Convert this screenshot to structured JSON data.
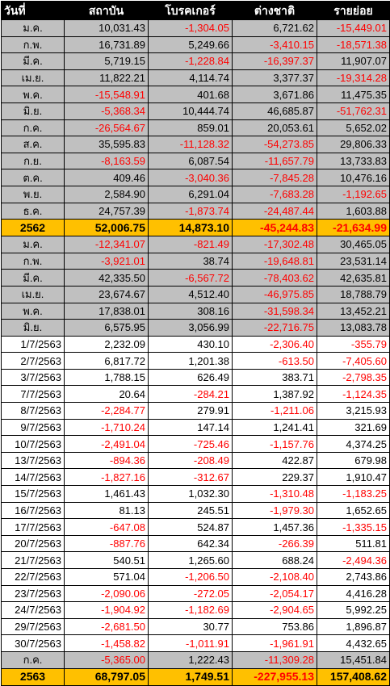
{
  "headers": [
    "วันที่",
    "สถาบัน",
    "โบรคเกอร์",
    "ต่างชาติ",
    "รายย่อย"
  ],
  "rows": [
    {
      "type": "month",
      "label": "ม.ค.",
      "values": [
        "10,031.43",
        "-1,304.05",
        "6,721.62",
        "-15,449.01"
      ]
    },
    {
      "type": "month",
      "label": "ก.พ.",
      "values": [
        "16,731.89",
        "5,249.66",
        "-3,410.15",
        "-18,571.38"
      ]
    },
    {
      "type": "month",
      "label": "มี.ค.",
      "values": [
        "5,719.15",
        "-1,228.84",
        "-16,397.37",
        "11,907.07"
      ]
    },
    {
      "type": "month",
      "label": "เม.ย.",
      "values": [
        "11,822.21",
        "4,114.74",
        "3,377.37",
        "-19,314.28"
      ]
    },
    {
      "type": "month",
      "label": "พ.ค.",
      "values": [
        "-15,548.91",
        "401.68",
        "3,671.86",
        "11,475.35"
      ]
    },
    {
      "type": "month",
      "label": "มิ.ย.",
      "values": [
        "-5,368.34",
        "10,444.74",
        "46,685.87",
        "-51,762.31"
      ]
    },
    {
      "type": "month",
      "label": "ก.ค.",
      "values": [
        "-26,564.67",
        "859.01",
        "20,053.61",
        "5,652.02"
      ]
    },
    {
      "type": "month",
      "label": "ส.ค.",
      "values": [
        "35,595.83",
        "-11,128.32",
        "-54,273.85",
        "29,806.33"
      ]
    },
    {
      "type": "month",
      "label": "ก.ย.",
      "values": [
        "-8,163.59",
        "6,087.54",
        "-11,657.79",
        "13,733.83"
      ]
    },
    {
      "type": "month",
      "label": "ต.ค.",
      "values": [
        "409.46",
        "-3,040.36",
        "-7,845.28",
        "10,476.16"
      ]
    },
    {
      "type": "month",
      "label": "พ.ย.",
      "values": [
        "2,584.90",
        "6,291.04",
        "-7,683.28",
        "-1,192.65"
      ]
    },
    {
      "type": "month",
      "label": "ธ.ค.",
      "values": [
        "24,757.39",
        "-1,873.74",
        "-24,487.44",
        "1,603.88"
      ]
    },
    {
      "type": "total",
      "label": "2562",
      "values": [
        "52,006.75",
        "14,873.10",
        "-45,244.83",
        "-21,634.99"
      ]
    },
    {
      "type": "month",
      "label": "ม.ค.",
      "values": [
        "-12,341.07",
        "-821.49",
        "-17,302.48",
        "30,465.05"
      ]
    },
    {
      "type": "month",
      "label": "ก.พ.",
      "values": [
        "-3,921.01",
        "38.74",
        "-19,648.81",
        "23,531.14"
      ]
    },
    {
      "type": "month",
      "label": "มี.ค.",
      "values": [
        "42,335.50",
        "-6,567.72",
        "-78,403.62",
        "42,635.81"
      ]
    },
    {
      "type": "month",
      "label": "เม.ย.",
      "values": [
        "23,674.67",
        "4,512.40",
        "-46,975.85",
        "18,788.79"
      ]
    },
    {
      "type": "month",
      "label": "พ.ค.",
      "values": [
        "17,838.01",
        "308.16",
        "-31,598.34",
        "13,452.21"
      ]
    },
    {
      "type": "month",
      "label": "มิ.ย.",
      "values": [
        "6,575.95",
        "3,056.99",
        "-22,716.75",
        "13,083.78"
      ]
    },
    {
      "type": "daily",
      "label": "1/7/2563",
      "values": [
        "2,232.09",
        "430.10",
        "-2,306.40",
        "-355.79"
      ]
    },
    {
      "type": "daily",
      "label": "2/7/2563",
      "values": [
        "6,817.72",
        "1,201.38",
        "-613.50",
        "-7,405.60"
      ]
    },
    {
      "type": "daily",
      "label": "3/7/2563",
      "values": [
        "1,788.15",
        "626.49",
        "383.71",
        "-2,798.35"
      ]
    },
    {
      "type": "daily",
      "label": "7/7/2563",
      "values": [
        "20.64",
        "-284.21",
        "1,387.92",
        "-1,124.35"
      ]
    },
    {
      "type": "daily",
      "label": "8/7/2563",
      "values": [
        "-2,284.77",
        "279.91",
        "-1,211.06",
        "3,215.93"
      ]
    },
    {
      "type": "daily",
      "label": "9/7/2563",
      "values": [
        "-1,710.24",
        "147.14",
        "1,241.41",
        "321.69"
      ]
    },
    {
      "type": "daily",
      "label": "10/7/2563",
      "values": [
        "-2,491.04",
        "-725.46",
        "-1,157.76",
        "4,374.25"
      ]
    },
    {
      "type": "daily",
      "label": "13/7/2563",
      "values": [
        "-894.36",
        "-208.49",
        "422.87",
        "679.98"
      ]
    },
    {
      "type": "daily",
      "label": "14/7/2563",
      "values": [
        "-1,827.16",
        "-312.67",
        "229.37",
        "1,910.47"
      ]
    },
    {
      "type": "daily",
      "label": "15/7/2563",
      "values": [
        "1,461.43",
        "1,032.30",
        "-1,310.48",
        "-1,183.25"
      ]
    },
    {
      "type": "daily",
      "label": "16/7/2563",
      "values": [
        "81.13",
        "245.51",
        "-1,979.30",
        "1,652.65"
      ]
    },
    {
      "type": "daily",
      "label": "17/7/2563",
      "values": [
        "-647.08",
        "524.87",
        "1,457.36",
        "-1,335.15"
      ]
    },
    {
      "type": "daily",
      "label": "20/7/2563",
      "values": [
        "-887.76",
        "642.34",
        "-266.39",
        "511.81"
      ]
    },
    {
      "type": "daily",
      "label": "21/7/2563",
      "values": [
        "540.51",
        "1,265.60",
        "688.24",
        "-2,494.36"
      ]
    },
    {
      "type": "daily",
      "label": "22/7/2563",
      "values": [
        "571.04",
        "-1,206.50",
        "-2,108.40",
        "2,743.86"
      ]
    },
    {
      "type": "daily",
      "label": "23/7/2563",
      "values": [
        "-2,090.06",
        "-272.05",
        "-2,054.17",
        "4,416.28"
      ]
    },
    {
      "type": "daily",
      "label": "24/7/2563",
      "values": [
        "-1,904.92",
        "-1,182.69",
        "-2,904.65",
        "5,992.25"
      ]
    },
    {
      "type": "daily",
      "label": "29/7/2563",
      "values": [
        "-2,681.50",
        "30.77",
        "753.86",
        "1,896.87"
      ]
    },
    {
      "type": "daily",
      "label": "30/7/2563",
      "values": [
        "-1,458.82",
        "-1,011.91",
        "-1,961.91",
        "4,432.65"
      ]
    },
    {
      "type": "month",
      "label": "ก.ค.",
      "values": [
        "-5,365.00",
        "1,222.43",
        "-11,309.28",
        "15,451.84"
      ]
    },
    {
      "type": "total",
      "label": "2563",
      "values": [
        "68,797.05",
        "1,749.51",
        "-227,955.13",
        "157,408.62"
      ]
    }
  ],
  "colors": {
    "header_bg": "#000000",
    "header_text": "#ffffff",
    "month_row_bg": "#c0c0c0",
    "daily_row_bg": "#ffffff",
    "total_row_bg": "#ffc000",
    "negative_text": "#ff0000"
  }
}
